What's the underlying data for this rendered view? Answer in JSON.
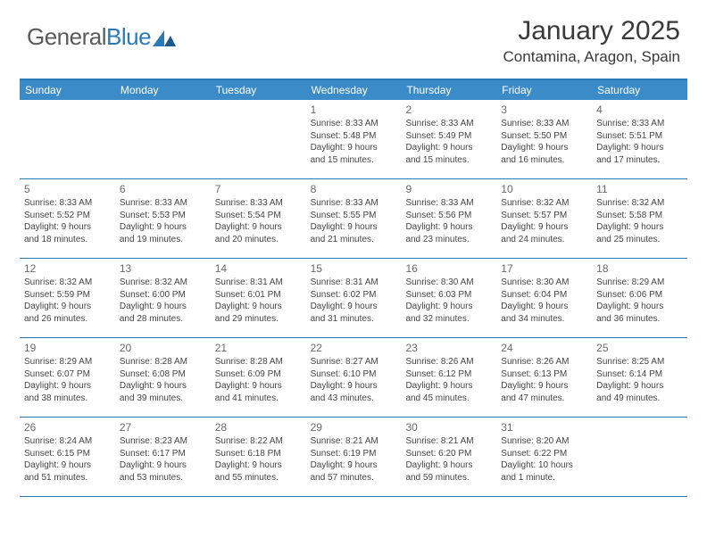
{
  "logo": {
    "text1": "General",
    "text2": "Blue"
  },
  "title": "January 2025",
  "location": "Contamina, Aragon, Spain",
  "colors": {
    "header_bg": "#3b8bc8",
    "border": "#2a7ab8",
    "text": "#444444",
    "daynum": "#6a6a6a"
  },
  "weekdays": [
    "Sunday",
    "Monday",
    "Tuesday",
    "Wednesday",
    "Thursday",
    "Friday",
    "Saturday"
  ],
  "weeks": [
    [
      null,
      null,
      null,
      {
        "n": "1",
        "sr": "8:33 AM",
        "ss": "5:48 PM",
        "dl": "9 hours and 15 minutes."
      },
      {
        "n": "2",
        "sr": "8:33 AM",
        "ss": "5:49 PM",
        "dl": "9 hours and 15 minutes."
      },
      {
        "n": "3",
        "sr": "8:33 AM",
        "ss": "5:50 PM",
        "dl": "9 hours and 16 minutes."
      },
      {
        "n": "4",
        "sr": "8:33 AM",
        "ss": "5:51 PM",
        "dl": "9 hours and 17 minutes."
      }
    ],
    [
      {
        "n": "5",
        "sr": "8:33 AM",
        "ss": "5:52 PM",
        "dl": "9 hours and 18 minutes."
      },
      {
        "n": "6",
        "sr": "8:33 AM",
        "ss": "5:53 PM",
        "dl": "9 hours and 19 minutes."
      },
      {
        "n": "7",
        "sr": "8:33 AM",
        "ss": "5:54 PM",
        "dl": "9 hours and 20 minutes."
      },
      {
        "n": "8",
        "sr": "8:33 AM",
        "ss": "5:55 PM",
        "dl": "9 hours and 21 minutes."
      },
      {
        "n": "9",
        "sr": "8:33 AM",
        "ss": "5:56 PM",
        "dl": "9 hours and 23 minutes."
      },
      {
        "n": "10",
        "sr": "8:32 AM",
        "ss": "5:57 PM",
        "dl": "9 hours and 24 minutes."
      },
      {
        "n": "11",
        "sr": "8:32 AM",
        "ss": "5:58 PM",
        "dl": "9 hours and 25 minutes."
      }
    ],
    [
      {
        "n": "12",
        "sr": "8:32 AM",
        "ss": "5:59 PM",
        "dl": "9 hours and 26 minutes."
      },
      {
        "n": "13",
        "sr": "8:32 AM",
        "ss": "6:00 PM",
        "dl": "9 hours and 28 minutes."
      },
      {
        "n": "14",
        "sr": "8:31 AM",
        "ss": "6:01 PM",
        "dl": "9 hours and 29 minutes."
      },
      {
        "n": "15",
        "sr": "8:31 AM",
        "ss": "6:02 PM",
        "dl": "9 hours and 31 minutes."
      },
      {
        "n": "16",
        "sr": "8:30 AM",
        "ss": "6:03 PM",
        "dl": "9 hours and 32 minutes."
      },
      {
        "n": "17",
        "sr": "8:30 AM",
        "ss": "6:04 PM",
        "dl": "9 hours and 34 minutes."
      },
      {
        "n": "18",
        "sr": "8:29 AM",
        "ss": "6:06 PM",
        "dl": "9 hours and 36 minutes."
      }
    ],
    [
      {
        "n": "19",
        "sr": "8:29 AM",
        "ss": "6:07 PM",
        "dl": "9 hours and 38 minutes."
      },
      {
        "n": "20",
        "sr": "8:28 AM",
        "ss": "6:08 PM",
        "dl": "9 hours and 39 minutes."
      },
      {
        "n": "21",
        "sr": "8:28 AM",
        "ss": "6:09 PM",
        "dl": "9 hours and 41 minutes."
      },
      {
        "n": "22",
        "sr": "8:27 AM",
        "ss": "6:10 PM",
        "dl": "9 hours and 43 minutes."
      },
      {
        "n": "23",
        "sr": "8:26 AM",
        "ss": "6:12 PM",
        "dl": "9 hours and 45 minutes."
      },
      {
        "n": "24",
        "sr": "8:26 AM",
        "ss": "6:13 PM",
        "dl": "9 hours and 47 minutes."
      },
      {
        "n": "25",
        "sr": "8:25 AM",
        "ss": "6:14 PM",
        "dl": "9 hours and 49 minutes."
      }
    ],
    [
      {
        "n": "26",
        "sr": "8:24 AM",
        "ss": "6:15 PM",
        "dl": "9 hours and 51 minutes."
      },
      {
        "n": "27",
        "sr": "8:23 AM",
        "ss": "6:17 PM",
        "dl": "9 hours and 53 minutes."
      },
      {
        "n": "28",
        "sr": "8:22 AM",
        "ss": "6:18 PM",
        "dl": "9 hours and 55 minutes."
      },
      {
        "n": "29",
        "sr": "8:21 AM",
        "ss": "6:19 PM",
        "dl": "9 hours and 57 minutes."
      },
      {
        "n": "30",
        "sr": "8:21 AM",
        "ss": "6:20 PM",
        "dl": "9 hours and 59 minutes."
      },
      {
        "n": "31",
        "sr": "8:20 AM",
        "ss": "6:22 PM",
        "dl": "10 hours and 1 minute."
      },
      null
    ]
  ],
  "labels": {
    "sunrise": "Sunrise:",
    "sunset": "Sunset:",
    "daylight": "Daylight:"
  }
}
